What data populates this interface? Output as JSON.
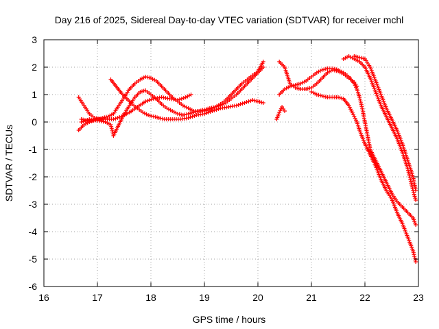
{
  "chart_data": {
    "type": "scatter",
    "title": "Day 216 of 2025, Sidereal Day-to-day VTEC variation (SDTVAR) for receiver mchl",
    "xlabel": "GPS time / hours",
    "ylabel": "SDTVAR / TECUs",
    "xlim": [
      16,
      23
    ],
    "ylim": [
      -6,
      3
    ],
    "xticks": [
      "16",
      "17",
      "18",
      "19",
      "20",
      "21",
      "22",
      "23"
    ],
    "yticks": [
      "-6",
      "-5",
      "-4",
      "-3",
      "-2",
      "-1",
      "0",
      "1",
      "2",
      "3"
    ],
    "grid": true,
    "marker": "plus",
    "colors": {
      "series": "#ff0000",
      "grid": "#a0a0a0",
      "axis": "#000000"
    },
    "series": [
      {
        "points": [
          [
            16.65,
            0.9
          ],
          [
            16.75,
            0.6
          ],
          [
            16.85,
            0.3
          ],
          [
            16.95,
            0.15
          ],
          [
            17.05,
            0.1
          ],
          [
            17.15,
            0.0
          ],
          [
            17.25,
            -0.1
          ],
          [
            17.3,
            -0.5
          ],
          [
            17.4,
            -0.1
          ],
          [
            17.5,
            0.3
          ],
          [
            17.6,
            0.6
          ],
          [
            17.7,
            0.9
          ],
          [
            17.8,
            1.1
          ],
          [
            17.9,
            1.15
          ],
          [
            18.0,
            1.0
          ],
          [
            18.1,
            0.85
          ],
          [
            18.2,
            0.65
          ],
          [
            18.3,
            0.5
          ],
          [
            18.4,
            0.4
          ],
          [
            18.5,
            0.3
          ],
          [
            18.6,
            0.25
          ],
          [
            18.7,
            0.3
          ],
          [
            18.8,
            0.35
          ],
          [
            18.9,
            0.4
          ],
          [
            19.0,
            0.45
          ],
          [
            19.1,
            0.5
          ],
          [
            19.2,
            0.55
          ],
          [
            19.3,
            0.6
          ],
          [
            19.4,
            0.7
          ],
          [
            19.5,
            0.85
          ],
          [
            19.6,
            1.0
          ],
          [
            19.7,
            1.2
          ],
          [
            19.8,
            1.4
          ],
          [
            19.9,
            1.6
          ],
          [
            20.0,
            1.8
          ],
          [
            20.1,
            2.0
          ]
        ]
      },
      {
        "points": [
          [
            16.7,
            0.1
          ],
          [
            16.8,
            0.05
          ],
          [
            16.9,
            0.05
          ],
          [
            17.0,
            0.1
          ],
          [
            17.1,
            0.15
          ],
          [
            17.2,
            0.2
          ],
          [
            17.3,
            0.3
          ],
          [
            17.4,
            0.6
          ],
          [
            17.5,
            0.9
          ],
          [
            17.6,
            1.2
          ],
          [
            17.7,
            1.4
          ],
          [
            17.8,
            1.55
          ],
          [
            17.9,
            1.65
          ],
          [
            18.0,
            1.6
          ],
          [
            18.1,
            1.5
          ],
          [
            18.2,
            1.3
          ],
          [
            18.3,
            1.1
          ],
          [
            18.4,
            0.9
          ],
          [
            18.5,
            0.75
          ],
          [
            18.6,
            0.6
          ],
          [
            18.7,
            0.5
          ],
          [
            18.8,
            0.4
          ],
          [
            18.9,
            0.4
          ],
          [
            19.0,
            0.4
          ],
          [
            19.1,
            0.45
          ],
          [
            19.2,
            0.55
          ],
          [
            19.3,
            0.65
          ],
          [
            19.4,
            0.8
          ],
          [
            19.5,
            1.0
          ],
          [
            19.6,
            1.2
          ],
          [
            19.7,
            1.4
          ],
          [
            19.8,
            1.55
          ],
          [
            19.9,
            1.7
          ],
          [
            20.0,
            1.85
          ],
          [
            20.1,
            2.2
          ]
        ]
      },
      {
        "points": [
          [
            16.7,
            0.0
          ],
          [
            16.85,
            0.1
          ],
          [
            17.0,
            0.05
          ],
          [
            17.15,
            0.0
          ],
          [
            17.25,
            1.55
          ],
          [
            17.35,
            1.3
          ],
          [
            17.45,
            1.05
          ],
          [
            17.55,
            0.85
          ],
          [
            17.65,
            0.65
          ],
          [
            17.75,
            0.5
          ],
          [
            17.85,
            0.35
          ],
          [
            17.95,
            0.25
          ],
          [
            18.05,
            0.2
          ],
          [
            18.15,
            0.15
          ],
          [
            18.25,
            0.1
          ],
          [
            18.4,
            0.1
          ],
          [
            18.55,
            0.1
          ],
          [
            18.7,
            0.15
          ],
          [
            18.85,
            0.25
          ],
          [
            19.0,
            0.3
          ],
          [
            19.15,
            0.4
          ],
          [
            19.3,
            0.5
          ],
          [
            19.45,
            0.55
          ],
          [
            19.6,
            0.6
          ],
          [
            19.75,
            0.7
          ],
          [
            19.9,
            0.8
          ],
          [
            20.0,
            0.75
          ],
          [
            20.1,
            0.7
          ]
        ]
      },
      {
        "points": [
          [
            16.65,
            -0.3
          ],
          [
            16.75,
            -0.1
          ],
          [
            16.85,
            0.0
          ],
          [
            17.0,
            0.1
          ],
          [
            17.15,
            0.1
          ],
          [
            17.3,
            0.1
          ],
          [
            17.45,
            0.2
          ],
          [
            17.6,
            0.35
          ],
          [
            17.75,
            0.55
          ],
          [
            17.9,
            0.75
          ],
          [
            18.05,
            0.85
          ],
          [
            18.2,
            0.9
          ],
          [
            18.35,
            0.85
          ],
          [
            18.5,
            0.8
          ],
          [
            18.65,
            0.9
          ],
          [
            18.75,
            1.0
          ]
        ]
      },
      {
        "points": [
          [
            20.35,
            0.1
          ],
          [
            20.4,
            0.35
          ],
          [
            20.45,
            0.55
          ],
          [
            20.5,
            0.4
          ],
          [
            20.4,
            2.2
          ],
          [
            20.45,
            2.1
          ],
          [
            20.5,
            2.0
          ],
          [
            20.55,
            1.7
          ],
          [
            20.6,
            1.4
          ],
          [
            20.7,
            1.25
          ],
          [
            20.8,
            1.2
          ],
          [
            20.9,
            1.2
          ],
          [
            21.0,
            1.25
          ],
          [
            21.1,
            1.4
          ],
          [
            21.2,
            1.6
          ],
          [
            21.3,
            1.8
          ],
          [
            21.4,
            1.9
          ],
          [
            21.5,
            1.85
          ],
          [
            21.6,
            1.75
          ],
          [
            21.7,
            1.6
          ],
          [
            21.8,
            1.45
          ],
          [
            21.85,
            1.3
          ]
        ]
      },
      {
        "points": [
          [
            20.4,
            1.0
          ],
          [
            20.5,
            1.2
          ],
          [
            20.6,
            1.3
          ],
          [
            20.7,
            1.35
          ],
          [
            20.8,
            1.4
          ],
          [
            20.9,
            1.5
          ],
          [
            21.0,
            1.65
          ],
          [
            21.1,
            1.8
          ],
          [
            21.2,
            1.9
          ],
          [
            21.3,
            1.95
          ],
          [
            21.4,
            1.95
          ],
          [
            21.5,
            1.9
          ],
          [
            21.6,
            1.8
          ],
          [
            21.7,
            1.65
          ],
          [
            21.8,
            1.4
          ],
          [
            21.85,
            1.2
          ],
          [
            21.9,
            0.9
          ],
          [
            21.95,
            0.5
          ],
          [
            22.0,
            0.0
          ],
          [
            22.05,
            -0.5
          ],
          [
            22.1,
            -1.0
          ],
          [
            22.2,
            -1.4
          ],
          [
            22.3,
            -1.8
          ],
          [
            22.4,
            -2.2
          ],
          [
            22.5,
            -2.6
          ],
          [
            22.6,
            -2.9
          ],
          [
            22.7,
            -3.1
          ],
          [
            22.8,
            -3.3
          ],
          [
            22.9,
            -3.5
          ],
          [
            22.95,
            -3.75
          ]
        ]
      },
      {
        "points": [
          [
            21.0,
            1.1
          ],
          [
            21.1,
            1.0
          ],
          [
            21.2,
            0.95
          ],
          [
            21.3,
            0.9
          ],
          [
            21.4,
            0.9
          ],
          [
            21.5,
            0.9
          ],
          [
            21.6,
            0.85
          ],
          [
            21.7,
            0.6
          ],
          [
            21.75,
            0.4
          ],
          [
            21.8,
            0.2
          ],
          [
            21.85,
            0.0
          ],
          [
            21.9,
            -0.3
          ],
          [
            22.0,
            -0.8
          ],
          [
            22.1,
            -1.2
          ],
          [
            22.2,
            -1.6
          ],
          [
            22.3,
            -2.1
          ],
          [
            22.4,
            -2.5
          ],
          [
            22.5,
            -2.8
          ],
          [
            22.6,
            -3.3
          ],
          [
            22.7,
            -3.7
          ],
          [
            22.8,
            -4.2
          ],
          [
            22.9,
            -4.7
          ],
          [
            22.95,
            -5.1
          ]
        ]
      },
      {
        "points": [
          [
            21.6,
            2.3
          ],
          [
            21.7,
            2.4
          ],
          [
            21.8,
            2.3
          ],
          [
            21.9,
            2.2
          ],
          [
            22.0,
            2.0
          ],
          [
            22.1,
            1.6
          ],
          [
            22.2,
            1.1
          ],
          [
            22.3,
            0.6
          ],
          [
            22.4,
            0.2
          ],
          [
            22.5,
            -0.2
          ],
          [
            22.6,
            -0.6
          ],
          [
            22.7,
            -1.1
          ],
          [
            22.8,
            -1.7
          ],
          [
            22.85,
            -2.1
          ],
          [
            22.9,
            -2.5
          ],
          [
            22.95,
            -2.85
          ]
        ]
      },
      {
        "points": [
          [
            21.8,
            2.4
          ],
          [
            21.9,
            2.35
          ],
          [
            22.0,
            2.3
          ],
          [
            22.1,
            2.0
          ],
          [
            22.2,
            1.5
          ],
          [
            22.3,
            1.0
          ],
          [
            22.4,
            0.5
          ],
          [
            22.5,
            0.1
          ],
          [
            22.6,
            -0.3
          ],
          [
            22.7,
            -0.8
          ],
          [
            22.8,
            -1.4
          ],
          [
            22.9,
            -2.0
          ],
          [
            22.95,
            -2.5
          ]
        ]
      }
    ]
  }
}
